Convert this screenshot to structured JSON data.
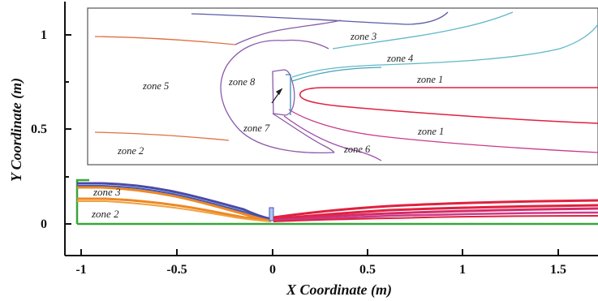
{
  "plot": {
    "x_axis_title": "X Coordinate (m)",
    "y_axis_title": "Y Coordinate (m)",
    "x_ticks": [
      "-1",
      "-0.5",
      "0",
      "0.5",
      "1",
      "1.5"
    ],
    "y_ticks": [
      "1",
      "0.5",
      "0"
    ]
  },
  "main_zones": {
    "zone3": "zone 3",
    "zone2": "zone 2"
  },
  "inset_zones": {
    "zone3": "zone 3",
    "zone4": "zone 4",
    "zone1_upper": "zone 1",
    "zone5": "zone 5",
    "zone8": "zone 8",
    "zone7": "zone 7",
    "zone1_lower": "zone 1",
    "zone2": "zone 2",
    "zone6": "zone 6"
  },
  "colors": {
    "zone1": "#e0213f",
    "zone2": "#ee8822",
    "zone3": "#5a5aa8",
    "zone4": "#5fb8c8",
    "zone5": "#8a5aa8",
    "zone6": "#b84aa0",
    "symmetry": "#3aa63a",
    "axis": "#111111"
  }
}
